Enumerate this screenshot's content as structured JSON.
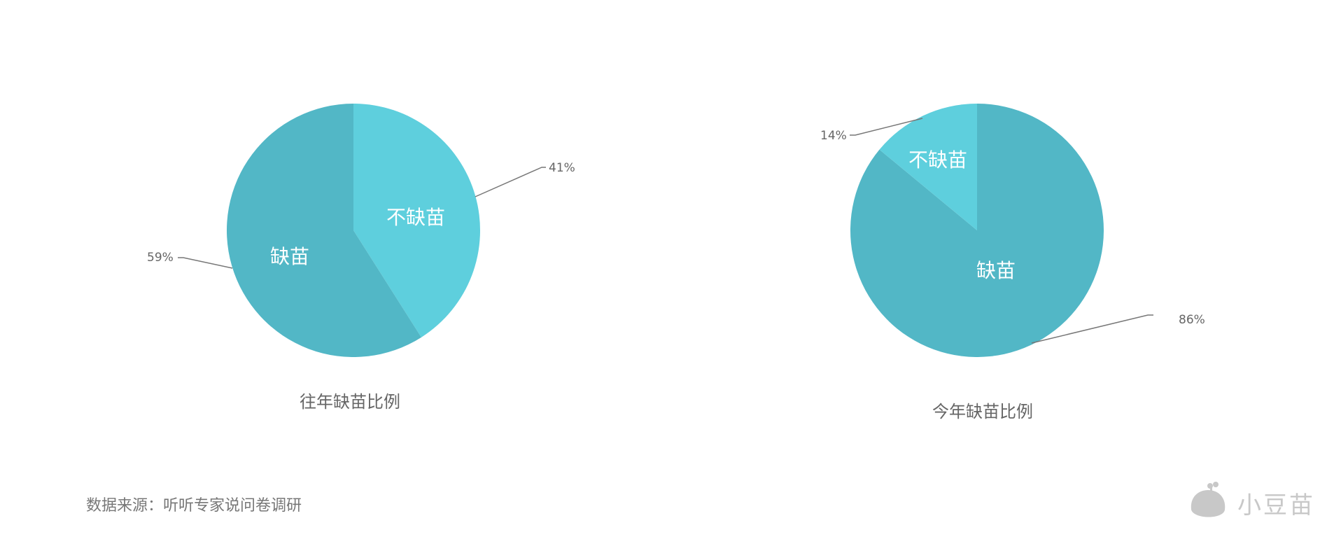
{
  "chart_data": [
    {
      "type": "pie",
      "title": "往年缺苗比例",
      "slices": [
        {
          "label": "不缺苗",
          "value": 41,
          "value_label": "41%",
          "color": "#5ECFDD"
        },
        {
          "label": "缺苗",
          "value": 59,
          "value_label": "59%",
          "color": "#52B7C6"
        }
      ]
    },
    {
      "type": "pie",
      "title": "今年缺苗比例",
      "slices": [
        {
          "label": "缺苗",
          "value": 86,
          "value_label": "86%",
          "color": "#52B7C6"
        },
        {
          "label": "不缺苗",
          "value": 14,
          "value_label": "14%",
          "color": "#5ECFDD"
        }
      ]
    }
  ],
  "footer": {
    "source": "数据来源：听听专家说问卷调研",
    "logo_text": "小豆苗"
  }
}
